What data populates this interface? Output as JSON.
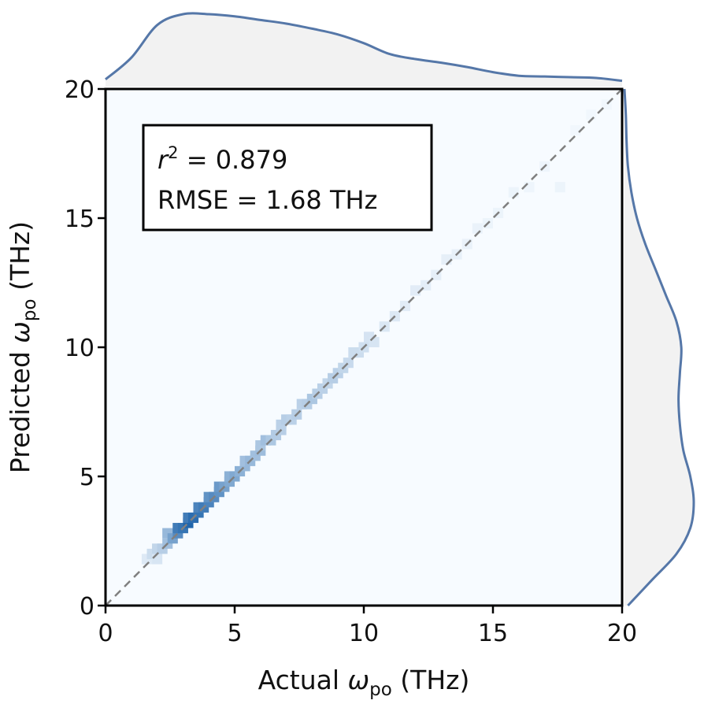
{
  "chart_data": {
    "type": "heatmap",
    "title": "",
    "xlabel": {
      "main": "Actual ",
      "symbol": "ω",
      "subscript": "po",
      "unit": " (THz)"
    },
    "ylabel": {
      "main": "Predicted ",
      "symbol": "ω",
      "subscript": "po",
      "unit": " (THz)"
    },
    "xlim": [
      0,
      20
    ],
    "ylim": [
      0,
      20
    ],
    "xticks": [
      "0",
      "5",
      "10",
      "15",
      "20"
    ],
    "yticks": [
      "0",
      "5",
      "10",
      "15",
      "20"
    ],
    "grid": false,
    "annotation": {
      "r2_symbol": "r",
      "r2_exponent": "2",
      "r2_text": " = 0.879",
      "rmse_text": "RMSE = 1.68 THz",
      "r2": 0.879,
      "rmse": 1.68
    },
    "reference_line": {
      "style": "dashed",
      "from": [
        0,
        0
      ],
      "to": [
        20,
        20
      ]
    },
    "bins": {
      "bin_width": 0.4,
      "cells": [
        [
          1.4,
          1.6,
          0.12
        ],
        [
          1.6,
          1.8,
          0.2
        ],
        [
          1.8,
          1.6,
          0.15
        ],
        [
          1.8,
          2.0,
          0.25
        ],
        [
          2.0,
          2.0,
          0.3
        ],
        [
          2.2,
          2.2,
          0.4
        ],
        [
          2.2,
          2.6,
          0.45
        ],
        [
          2.4,
          2.4,
          0.6
        ],
        [
          2.6,
          2.6,
          0.75
        ],
        [
          2.6,
          2.8,
          0.85
        ],
        [
          2.8,
          2.8,
          0.9
        ],
        [
          3.0,
          3.0,
          1.0
        ],
        [
          3.0,
          3.2,
          0.85
        ],
        [
          3.2,
          3.2,
          0.95
        ],
        [
          3.4,
          3.4,
          0.9
        ],
        [
          3.4,
          3.6,
          0.8
        ],
        [
          3.6,
          3.6,
          0.85
        ],
        [
          3.8,
          3.8,
          0.8
        ],
        [
          3.8,
          4.0,
          0.7
        ],
        [
          4.0,
          4.0,
          0.75
        ],
        [
          4.2,
          4.2,
          0.7
        ],
        [
          4.2,
          4.4,
          0.65
        ],
        [
          4.4,
          4.4,
          0.6
        ],
        [
          4.6,
          4.6,
          0.55
        ],
        [
          4.6,
          4.8,
          0.5
        ],
        [
          4.8,
          4.8,
          0.55
        ],
        [
          5.0,
          5.0,
          0.5
        ],
        [
          5.2,
          5.2,
          0.45
        ],
        [
          5.2,
          5.4,
          0.4
        ],
        [
          5.4,
          5.4,
          0.45
        ],
        [
          5.6,
          5.6,
          0.4
        ],
        [
          5.8,
          5.8,
          0.42
        ],
        [
          5.8,
          6.0,
          0.35
        ],
        [
          6.0,
          6.2,
          0.4
        ],
        [
          6.2,
          6.2,
          0.35
        ],
        [
          6.4,
          6.4,
          0.32
        ],
        [
          6.6,
          6.6,
          0.3
        ],
        [
          6.6,
          6.8,
          0.28
        ],
        [
          6.8,
          7.0,
          0.3
        ],
        [
          7.0,
          7.0,
          0.28
        ],
        [
          7.2,
          7.2,
          0.3
        ],
        [
          7.4,
          7.6,
          0.28
        ],
        [
          7.6,
          7.6,
          0.3
        ],
        [
          7.8,
          7.8,
          0.35
        ],
        [
          8.0,
          8.0,
          0.3
        ],
        [
          8.2,
          8.2,
          0.28
        ],
        [
          8.4,
          8.4,
          0.25
        ],
        [
          8.6,
          8.6,
          0.3
        ],
        [
          8.8,
          8.8,
          0.28
        ],
        [
          9.0,
          9.0,
          0.25
        ],
        [
          9.2,
          9.2,
          0.22
        ],
        [
          9.4,
          9.6,
          0.2
        ],
        [
          9.6,
          9.6,
          0.2
        ],
        [
          9.8,
          9.8,
          0.18
        ],
        [
          10.0,
          10.2,
          0.16
        ],
        [
          10.2,
          10.0,
          0.15
        ],
        [
          10.6,
          10.6,
          0.13
        ],
        [
          11.0,
          11.0,
          0.12
        ],
        [
          11.4,
          11.4,
          0.1
        ],
        [
          11.8,
          12.0,
          0.1
        ],
        [
          12.2,
          12.2,
          0.09
        ],
        [
          12.6,
          12.6,
          0.08
        ],
        [
          13.0,
          13.2,
          0.08
        ],
        [
          13.4,
          13.4,
          0.07
        ],
        [
          13.8,
          13.8,
          0.06
        ],
        [
          14.2,
          14.4,
          0.06
        ],
        [
          14.6,
          14.6,
          0.05
        ],
        [
          15.0,
          15.0,
          0.05
        ],
        [
          15.6,
          15.8,
          0.05
        ],
        [
          16.2,
          16.0,
          0.04
        ],
        [
          16.8,
          16.8,
          0.04
        ],
        [
          17.4,
          16.0,
          0.05
        ],
        [
          18.0,
          18.2,
          0.03
        ],
        [
          18.6,
          18.8,
          0.03
        ],
        [
          19.2,
          19.2,
          0.03
        ]
      ]
    },
    "marginal_x": {
      "x": [
        0,
        1,
        2,
        3,
        4,
        5,
        6,
        7,
        8,
        9,
        10,
        11,
        12,
        13,
        14,
        15,
        16,
        17,
        18,
        19,
        20
      ],
      "density": [
        0.1,
        0.4,
        0.85,
        1.0,
        1.0,
        0.97,
        0.92,
        0.87,
        0.8,
        0.72,
        0.6,
        0.45,
        0.38,
        0.33,
        0.27,
        0.2,
        0.15,
        0.14,
        0.13,
        0.12,
        0.08
      ]
    },
    "marginal_y": {
      "y": [
        0,
        1,
        2,
        3,
        4,
        5,
        6,
        7,
        8,
        9,
        10,
        11,
        12,
        13,
        14,
        15,
        16,
        17,
        18,
        19,
        20
      ],
      "density": [
        0.05,
        0.4,
        0.75,
        0.95,
        1.0,
        0.95,
        0.85,
        0.8,
        0.78,
        0.8,
        0.82,
        0.75,
        0.6,
        0.45,
        0.3,
        0.18,
        0.1,
        0.05,
        0.03,
        0.02,
        0.0
      ]
    },
    "colors": {
      "background": "#f7fbff",
      "high": "#2166ac",
      "marginal_line": "#5577a8",
      "marginal_fill": "#f2f2f2",
      "reference": "#808080"
    }
  }
}
